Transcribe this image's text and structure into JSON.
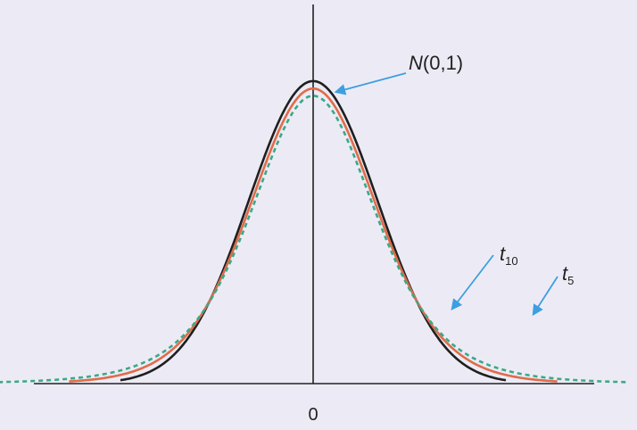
{
  "chart_data": {
    "type": "line",
    "title": "",
    "xlabel": "",
    "ylabel": "",
    "x_ticks": [
      "0"
    ],
    "series": [
      {
        "name": "N(0,1)",
        "label_main": "N",
        "label_sub": "",
        "label_paren": "(0,1)",
        "color": "#1f1f1f",
        "dashed": false,
        "df": null,
        "x_range": [
          -3.0,
          3.0
        ]
      },
      {
        "name": "t10",
        "label_main": "t",
        "label_sub": "10",
        "label_paren": "",
        "color": "#e06b4a",
        "dashed": false,
        "df": 10,
        "x_range": [
          -3.8,
          3.8
        ]
      },
      {
        "name": "t5",
        "label_main": "t",
        "label_sub": "5",
        "label_paren": "",
        "color": "#3aa985",
        "dashed": true,
        "df": 5,
        "x_range": [
          -4.9,
          4.9
        ]
      }
    ],
    "annotation_color": "#3d9fe0",
    "grid": false,
    "legend": "none"
  }
}
